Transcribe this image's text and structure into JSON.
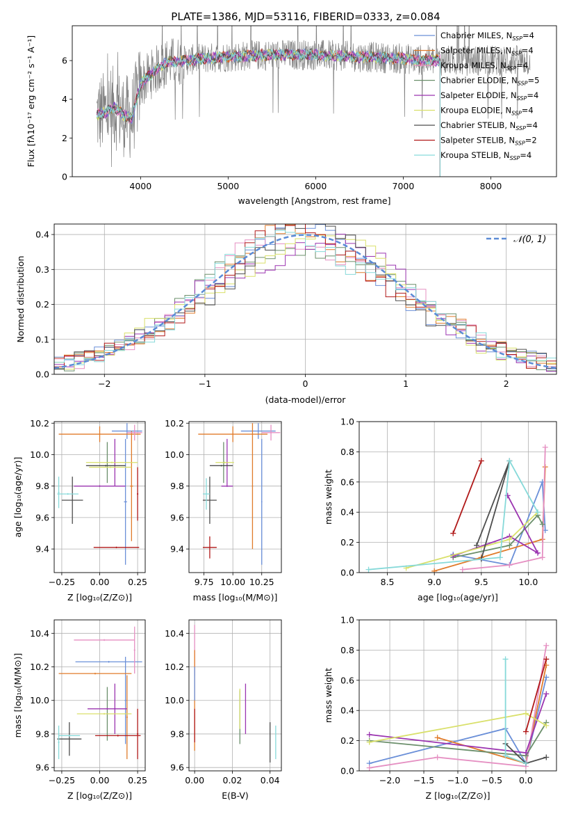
{
  "figure_title": "PLATE=1386, MJD=53116, FIBERID=0333, z=0.084",
  "colors": {
    "Chabrier MILES": "#6a8fd8",
    "Salpeter MILES": "#e07b2a",
    "Kroupa MILES": "#e58fc2",
    "Chabrier ELODIE": "#6b8f6b",
    "Salpeter ELODIE": "#9b34b0",
    "Kroupa ELODIE": "#d9e06a",
    "Chabrier STELIB": "#4d4d4d",
    "Salpeter STELIB": "#b01818",
    "Kroupa STELIB": "#86d9d9",
    "normal_curve": "#5b8bd6",
    "data_gray": "#808080"
  },
  "chart_data": [
    {
      "id": "spectrum",
      "type": "line",
      "title": "PLATE=1386, MJD=53116, FIBERID=0333, z=0.084",
      "xlabel": "wavelength [Angstrom, rest frame]",
      "ylabel": "Flux [fλ10⁻¹⁷ erg cm⁻² s⁻¹ A⁻¹]",
      "xlim": [
        3220,
        8750
      ],
      "ylim": [
        0,
        7.8
      ],
      "xticks": [
        4000,
        5000,
        6000,
        7000,
        8000
      ],
      "yticks": [
        0,
        2,
        4,
        6
      ],
      "legend": {
        "position": "top-right",
        "entries": [
          {
            "main": "Chabrier MILES, N",
            "sub": "SSP",
            "tail": "=4"
          },
          {
            "main": "Salpeter MILES, N",
            "sub": "SSP",
            "tail": "=4"
          },
          {
            "main": "Kroupa MILES, N",
            "sub": "SSP",
            "tail": "=4"
          },
          {
            "main": "Chabrier ELODIE, N",
            "sub": "SSP",
            "tail": "=5"
          },
          {
            "main": "Salpeter ELODIE, N",
            "sub": "SSP",
            "tail": "=4"
          },
          {
            "main": "Kroupa ELODIE, N",
            "sub": "SSP",
            "tail": "=4"
          },
          {
            "main": "Chabrier STELIB, N",
            "sub": "SSP",
            "tail": "=4"
          },
          {
            "main": "Salpeter STELIB, N",
            "sub": "SSP",
            "tail": "=2"
          },
          {
            "main": "Kroupa STELIB, N",
            "sub": "SSP",
            "tail": "=4"
          }
        ]
      },
      "continuum_model": {
        "x": [
          3500,
          3600,
          3700,
          3800,
          3900,
          3950,
          4000,
          4100,
          4200,
          4300,
          4500,
          4700,
          5000,
          5500,
          6000,
          6500,
          7000,
          7300,
          7420
        ],
        "y": [
          3.2,
          3.3,
          3.6,
          3.2,
          3.0,
          3.9,
          4.8,
          5.2,
          5.6,
          5.9,
          6.0,
          6.1,
          6.2,
          6.3,
          6.3,
          6.2,
          6.1,
          6.0,
          6.0
        ]
      },
      "data_coverage": {
        "observed_x": [
          3500,
          8450
        ],
        "model_x": [
          3500,
          7420
        ]
      }
    },
    {
      "id": "residuals",
      "type": "line",
      "xlabel": "(data-model)/error",
      "ylabel": "Normed distribution",
      "xlim": [
        -2.5,
        2.5
      ],
      "ylim": [
        0,
        0.43
      ],
      "xticks": [
        -2,
        -1,
        0,
        1,
        2
      ],
      "yticks": [
        0.0,
        0.1,
        0.2,
        0.3,
        0.4
      ],
      "legend": {
        "position": "top-right",
        "label": "𝒩(0, 1)"
      },
      "histogram_bin_width": 0.1,
      "normal": {
        "mean": 0,
        "sigma": 1
      }
    },
    {
      "id": "age_vs_Z",
      "type": "scatter",
      "xlabel": "Z [log₁₀(Z/Z⊙)]",
      "ylabel": "age  [log₁₀(age/yr)]",
      "xlim": [
        -0.3,
        0.3
      ],
      "ylim": [
        9.25,
        10.21
      ],
      "xticks": [
        -0.25,
        0.0,
        0.25
      ],
      "yticks": [
        9.4,
        9.6,
        9.8,
        10.0,
        10.2
      ],
      "points": [
        {
          "model": "Chabrier MILES",
          "x": 0.18,
          "y": 10.15,
          "xerr": 0.1,
          "yerr": 0.05
        },
        {
          "model": "Chabrier MILES",
          "x": 0.17,
          "y": 9.7,
          "xerr": 0.01,
          "yerr": 0.4
        },
        {
          "model": "Salpeter MILES",
          "x": 0.0,
          "y": 10.13,
          "xerr": 0.27,
          "yerr": 0.05
        },
        {
          "model": "Salpeter MILES",
          "x": 0.21,
          "y": 9.8,
          "xerr": 0.01,
          "yerr": 0.35
        },
        {
          "model": "Kroupa MILES",
          "x": 0.23,
          "y": 10.14,
          "xerr": 0.05,
          "yerr": 0.05
        },
        {
          "model": "Chabrier ELODIE",
          "x": 0.05,
          "y": 9.95,
          "xerr": 0.005,
          "yerr": 0.13
        },
        {
          "model": "Salpeter ELODIE",
          "x": 0.1,
          "y": 9.95,
          "xerr": 0.005,
          "yerr": 0.15
        },
        {
          "model": "Salpeter ELODIE",
          "x": 0.0,
          "y": 9.8,
          "xerr": 0.17,
          "yerr": 0.005
        },
        {
          "model": "Kroupa ELODIE",
          "x": 0.08,
          "y": 9.95,
          "xerr": 0.17,
          "yerr": 0.005
        },
        {
          "model": "Kroupa ELODIE",
          "x": 0.07,
          "y": 9.92,
          "xerr": 0.14,
          "yerr": 0.005
        },
        {
          "model": "Chabrier STELIB",
          "x": -0.18,
          "y": 9.71,
          "xerr": 0.07,
          "yerr": 0.15
        },
        {
          "model": "Chabrier STELIB",
          "x": 0.04,
          "y": 9.93,
          "xerr": 0.13,
          "yerr": 0.005
        },
        {
          "model": "Salpeter STELIB",
          "x": 0.25,
          "y": 9.75,
          "xerr": 0.005,
          "yerr": 0.17
        },
        {
          "model": "Salpeter STELIB",
          "x": 0.11,
          "y": 9.41,
          "xerr": 0.15,
          "yerr": 0.005
        },
        {
          "model": "Kroupa STELIB",
          "x": -0.27,
          "y": 9.76,
          "xerr": 0.005,
          "yerr": 0.1
        },
        {
          "model": "Kroupa STELIB",
          "x": -0.21,
          "y": 9.75,
          "xerr": 0.07,
          "yerr": 0.005
        }
      ]
    },
    {
      "id": "age_vs_mass",
      "type": "scatter",
      "xlabel": "mass [log₁₀(M/M⊙)]",
      "ylabel": "",
      "xlim": [
        9.62,
        10.42
      ],
      "ylim": [
        9.25,
        10.21
      ],
      "xticks": [
        9.75,
        10.0,
        10.25
      ],
      "yticks": [
        9.4,
        9.6,
        9.8,
        10.0,
        10.2
      ],
      "points": [
        {
          "model": "Chabrier MILES",
          "x": 10.22,
          "y": 10.15,
          "xerr": 0.15,
          "yerr": 0.05
        },
        {
          "model": "Chabrier MILES",
          "x": 10.25,
          "y": 9.7,
          "xerr": 0.005,
          "yerr": 0.4
        },
        {
          "model": "Salpeter MILES",
          "x": 10.0,
          "y": 10.13,
          "xerr": 0.3,
          "yerr": 0.05
        },
        {
          "model": "Salpeter MILES",
          "x": 10.17,
          "y": 9.8,
          "xerr": 0.005,
          "yerr": 0.4
        },
        {
          "model": "Kroupa MILES",
          "x": 10.33,
          "y": 10.14,
          "xerr": 0.08,
          "yerr": 0.05
        },
        {
          "model": "Chabrier ELODIE",
          "x": 9.92,
          "y": 9.95,
          "xerr": 0.005,
          "yerr": 0.13
        },
        {
          "model": "Salpeter ELODIE",
          "x": 9.95,
          "y": 9.8,
          "xerr": 0.05,
          "yerr": 0.005
        },
        {
          "model": "Salpeter ELODIE",
          "x": 9.95,
          "y": 9.95,
          "xerr": 0.005,
          "yerr": 0.15
        },
        {
          "model": "Kroupa ELODIE",
          "x": 9.93,
          "y": 9.95,
          "xerr": 0.08,
          "yerr": 0.005
        },
        {
          "model": "Chabrier STELIB",
          "x": 9.8,
          "y": 9.71,
          "xerr": 0.06,
          "yerr": 0.15
        },
        {
          "model": "Chabrier STELIB",
          "x": 9.9,
          "y": 9.93,
          "xerr": 0.1,
          "yerr": 0.005
        },
        {
          "model": "Salpeter STELIB",
          "x": 9.8,
          "y": 9.41,
          "xerr": 0.06,
          "yerr": 0.07
        },
        {
          "model": "Kroupa STELIB",
          "x": 9.77,
          "y": 9.75,
          "xerr": 0.03,
          "yerr": 0.1
        }
      ]
    },
    {
      "id": "weight_vs_age",
      "type": "line",
      "xlabel": "age  [log₁₀(age/yr)]",
      "ylabel": "mass weight",
      "xlim": [
        8.2,
        10.3
      ],
      "ylim": [
        0,
        1.0
      ],
      "xticks": [
        8.5,
        9.0,
        9.5,
        10.0
      ],
      "yticks": [
        0.0,
        0.2,
        0.4,
        0.6,
        0.8,
        1.0
      ],
      "series": [
        {
          "model": "Chabrier MILES",
          "x": [
            9.2,
            9.8,
            10.15,
            10.18
          ],
          "y": [
            0.12,
            0.05,
            0.6,
            0.28
          ]
        },
        {
          "model": "Salpeter MILES",
          "x": [
            9.0,
            9.5,
            10.15,
            10.18
          ],
          "y": [
            0.01,
            0.1,
            0.22,
            0.7
          ]
        },
        {
          "model": "Kroupa MILES",
          "x": [
            9.3,
            9.8,
            10.15,
            10.18
          ],
          "y": [
            0.02,
            0.05,
            0.1,
            0.83
          ]
        },
        {
          "model": "Chabrier ELODIE",
          "x": [
            9.2,
            9.8,
            10.1,
            10.15
          ],
          "y": [
            0.1,
            0.18,
            0.38,
            0.32
          ]
        },
        {
          "model": "Salpeter ELODIE",
          "x": [
            9.2,
            9.8,
            10.1,
            9.78
          ],
          "y": [
            0.11,
            0.24,
            0.13,
            0.51
          ]
        },
        {
          "model": "Kroupa ELODIE",
          "x": [
            8.7,
            9.8,
            10.1
          ],
          "y": [
            0.03,
            0.22,
            0.4
          ]
        },
        {
          "model": "Chabrier STELIB",
          "x": [
            9.5,
            9.8,
            9.45
          ],
          "y": [
            0.09,
            0.74,
            0.18
          ]
        },
        {
          "model": "Salpeter STELIB",
          "x": [
            9.2,
            9.5
          ],
          "y": [
            0.26,
            0.74
          ]
        },
        {
          "model": "Kroupa STELIB",
          "x": [
            8.3,
            9.7,
            9.8,
            10.1
          ],
          "y": [
            0.02,
            0.1,
            0.74,
            0.4
          ]
        }
      ]
    },
    {
      "id": "mass_vs_Z",
      "type": "scatter",
      "xlabel": "Z [log₁₀(Z/Z⊙)]",
      "ylabel": "mass [log₁₀(M/M⊙)]",
      "xlim": [
        -0.3,
        0.3
      ],
      "ylim": [
        9.58,
        10.48
      ],
      "xticks": [
        -0.25,
        0.0,
        0.25
      ],
      "yticks": [
        9.6,
        9.8,
        10.0,
        10.2,
        10.4
      ],
      "points": [
        {
          "model": "Chabrier MILES",
          "x": 0.06,
          "y": 10.23,
          "xerr": 0.22,
          "yerr": 0.005
        },
        {
          "model": "Chabrier MILES",
          "x": 0.17,
          "y": 10.0,
          "xerr": 0.005,
          "yerr": 0.26
        },
        {
          "model": "Salpeter MILES",
          "x": -0.03,
          "y": 10.16,
          "xerr": 0.24,
          "yerr": 0.005
        },
        {
          "model": "Salpeter MILES",
          "x": 0.18,
          "y": 9.9,
          "xerr": 0.005,
          "yerr": 0.25
        },
        {
          "model": "Kroupa MILES",
          "x": 0.03,
          "y": 10.36,
          "xerr": 0.2,
          "yerr": 0.005
        },
        {
          "model": "Kroupa MILES",
          "x": 0.23,
          "y": 10.3,
          "xerr": 0.005,
          "yerr": 0.14
        },
        {
          "model": "Chabrier ELODIE",
          "x": 0.05,
          "y": 9.92,
          "xerr": 0.005,
          "yerr": 0.16
        },
        {
          "model": "Salpeter ELODIE",
          "x": 0.05,
          "y": 9.95,
          "xerr": 0.13,
          "yerr": 0.005
        },
        {
          "model": "Salpeter ELODIE",
          "x": 0.1,
          "y": 9.95,
          "xerr": 0.005,
          "yerr": 0.15
        },
        {
          "model": "Kroupa ELODIE",
          "x": 0.03,
          "y": 9.92,
          "xerr": 0.18,
          "yerr": 0.005
        },
        {
          "model": "Chabrier STELIB",
          "x": -0.2,
          "y": 9.77,
          "xerr": 0.08,
          "yerr": 0.1
        },
        {
          "model": "Salpeter STELIB",
          "x": 0.12,
          "y": 9.79,
          "xerr": 0.15,
          "yerr": 0.005
        },
        {
          "model": "Salpeter STELIB",
          "x": 0.25,
          "y": 9.8,
          "xerr": 0.005,
          "yerr": 0.15
        },
        {
          "model": "Kroupa STELIB",
          "x": -0.27,
          "y": 9.75,
          "xerr": 0.005,
          "yerr": 0.1
        },
        {
          "model": "Kroupa STELIB",
          "x": -0.2,
          "y": 9.79,
          "xerr": 0.07,
          "yerr": 0.005
        }
      ]
    },
    {
      "id": "mass_vs_EBV",
      "type": "scatter",
      "xlabel": "E(B-V)",
      "ylabel": "",
      "xlim": [
        -0.003,
        0.046
      ],
      "ylim": [
        9.58,
        10.48
      ],
      "xticks": [
        0.0,
        0.02,
        0.04
      ],
      "yticks": [
        9.6,
        9.8,
        10.0,
        10.2,
        10.4
      ],
      "points": [
        {
          "model": "Kroupa MILES",
          "x": 0.0,
          "y": 10.3,
          "xerr": 0,
          "yerr": 0.15
        },
        {
          "model": "Salpeter MILES",
          "x": 0.0,
          "y": 10.0,
          "xerr": 0,
          "yerr": 0.3
        },
        {
          "model": "Chabrier MILES",
          "x": 0.0,
          "y": 10.1,
          "xerr": 0,
          "yerr": 0.1
        },
        {
          "model": "Salpeter STELIB",
          "x": 0.0,
          "y": 9.85,
          "xerr": 0,
          "yerr": 0.1
        },
        {
          "model": "Chabrier ELODIE",
          "x": 0.024,
          "y": 9.9,
          "xerr": 0,
          "yerr": 0.16
        },
        {
          "model": "Kroupa ELODIE",
          "x": 0.024,
          "y": 9.95,
          "xerr": 0,
          "yerr": 0.12
        },
        {
          "model": "Salpeter ELODIE",
          "x": 0.027,
          "y": 9.95,
          "xerr": 0,
          "yerr": 0.15
        },
        {
          "model": "Chabrier STELIB",
          "x": 0.04,
          "y": 9.75,
          "xerr": 0,
          "yerr": 0.12
        },
        {
          "model": "Kroupa STELIB",
          "x": 0.043,
          "y": 9.75,
          "xerr": 0,
          "yerr": 0.1
        }
      ]
    },
    {
      "id": "weight_vs_Z",
      "type": "line",
      "xlabel": "Z [log₁₀(Z/Z⊙)]",
      "ylabel": "mass weight",
      "xlim": [
        -2.45,
        0.45
      ],
      "ylim": [
        0,
        1.0
      ],
      "xticks": [
        -2.0,
        -1.5,
        -1.0,
        -0.5,
        0.0
      ],
      "yticks": [
        0.0,
        0.2,
        0.4,
        0.6,
        0.8,
        1.0
      ],
      "series": [
        {
          "model": "Chabrier MILES",
          "x": [
            -2.3,
            -0.3,
            0.0,
            0.3
          ],
          "y": [
            0.05,
            0.28,
            0.05,
            0.62
          ]
        },
        {
          "model": "Salpeter MILES",
          "x": [
            -1.3,
            0.0,
            0.3
          ],
          "y": [
            0.22,
            0.05,
            0.7
          ]
        },
        {
          "model": "Kroupa MILES",
          "x": [
            -2.3,
            -1.3,
            0.0,
            0.3
          ],
          "y": [
            0.02,
            0.09,
            0.03,
            0.83
          ]
        },
        {
          "model": "Chabrier ELODIE",
          "x": [
            -2.3,
            0.0,
            0.3
          ],
          "y": [
            0.2,
            0.1,
            0.32
          ]
        },
        {
          "model": "Salpeter ELODIE",
          "x": [
            -2.3,
            0.0,
            0.3
          ],
          "y": [
            0.24,
            0.12,
            0.51
          ]
        },
        {
          "model": "Kroupa ELODIE",
          "x": [
            -2.3,
            0.0,
            0.3
          ],
          "y": [
            0.19,
            0.38,
            0.3
          ]
        },
        {
          "model": "Chabrier STELIB",
          "x": [
            -0.3,
            0.0,
            0.3
          ],
          "y": [
            0.18,
            0.05,
            0.09
          ]
        },
        {
          "model": "Salpeter STELIB",
          "x": [
            0.0,
            0.3
          ],
          "y": [
            0.26,
            0.74
          ]
        },
        {
          "model": "Kroupa STELIB",
          "x": [
            -0.3,
            -0.3,
            0.0
          ],
          "y": [
            0.74,
            0.1,
            0.05
          ]
        }
      ]
    }
  ]
}
